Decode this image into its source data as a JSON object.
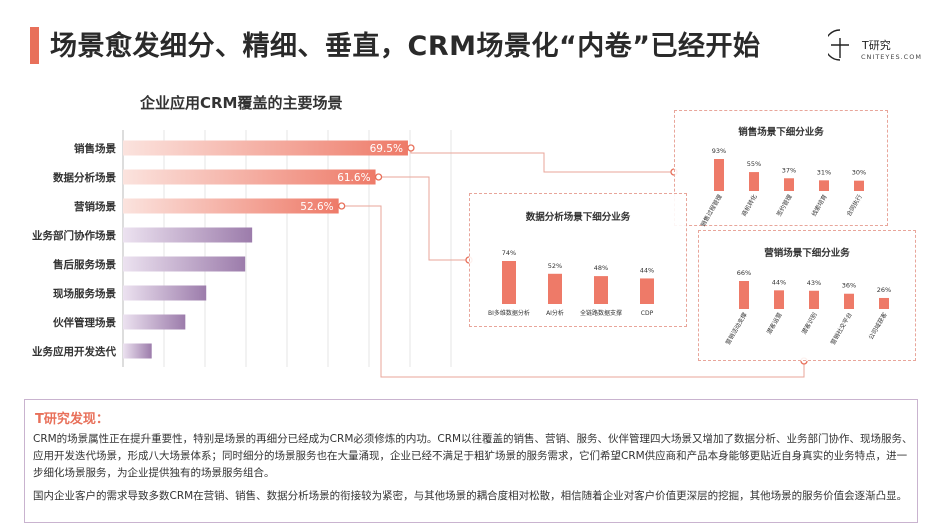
{
  "slide": {
    "title": "场景愈发细分、精细、垂直，CRM场景化“内卷”已经开始"
  },
  "logo": {
    "name": "T研究",
    "sub": "CNITEYES.COM"
  },
  "colors": {
    "accent": "#e8705a",
    "bar_red": "#ee7a68",
    "bar_purple": "#9c7cab",
    "panel_border": "#e8a59a"
  },
  "chart_data": [
    {
      "type": "bar",
      "orientation": "horizontal",
      "title": "企业应用CRM覆盖的主要场景",
      "categories": [
        "销售场景",
        "数据分析场景",
        "营销场景",
        "业务部门协作场景",
        "售后服务场景",
        "现场服务场景",
        "伙伴管理场景",
        "业务应用开发迭代"
      ],
      "values": [
        69.5,
        61.6,
        52.6,
        31.5,
        29.8,
        20.3,
        15.2,
        7.0
      ],
      "data_labels": [
        "69.5%",
        "61.6%",
        "52.6%",
        "",
        "",
        "",
        "",
        ""
      ],
      "grid": true
    },
    {
      "type": "bar",
      "title": "销售场景下细分业务",
      "categories": [
        "销售过程管理",
        "商机转化",
        "签约管理",
        "线索培育",
        "合同执行"
      ],
      "values": [
        93,
        55,
        37,
        31,
        30
      ],
      "data_labels": [
        "93%",
        "55%",
        "37%",
        "31%",
        "30%"
      ]
    },
    {
      "type": "bar",
      "title": "数据分析场景下细分业务",
      "categories": [
        "BI多维数据分析",
        "AI分析",
        "全链路数据支撑",
        "CDP"
      ],
      "values": [
        74,
        52,
        48,
        44
      ],
      "data_labels": [
        "74%",
        "52%",
        "48%",
        "44%"
      ]
    },
    {
      "type": "bar",
      "title": "营销场景下细分业务",
      "categories": [
        "营销活动支撑",
        "潜客运营",
        "潜客识别",
        "营销社交平台",
        "公司域获客"
      ],
      "values": [
        66,
        44,
        43,
        36,
        26
      ],
      "data_labels": [
        "66%",
        "44%",
        "43%",
        "36%",
        "26%"
      ]
    }
  ],
  "findings": {
    "title": "T研究发现：",
    "p1": "CRM的场景属性正在提升重要性，特别是场景的再细分已经成为CRM必须修炼的内功。CRM以往覆盖的销售、营销、服务、伙伴管理四大场景又增加了数据分析、业务部门协作、现场服务、应用开发迭代场景，形成八大场景体系；同时细分的场景服务也在大量涌现，企业已经不满足于粗犷场景的服务需求，它们希望CRM供应商和产品本身能够更贴近自身真实的业务特点，进一步细化场景服务，为企业提供独有的场景服务组合。",
    "p2": "国内企业客户的需求导致多数CRM在营销、销售、数据分析场景的衔接较为紧密，与其他场景的耦合度相对松散，相信随着企业对客户价值更深层的挖掘，其他场景的服务价值会逐渐凸显。"
  }
}
